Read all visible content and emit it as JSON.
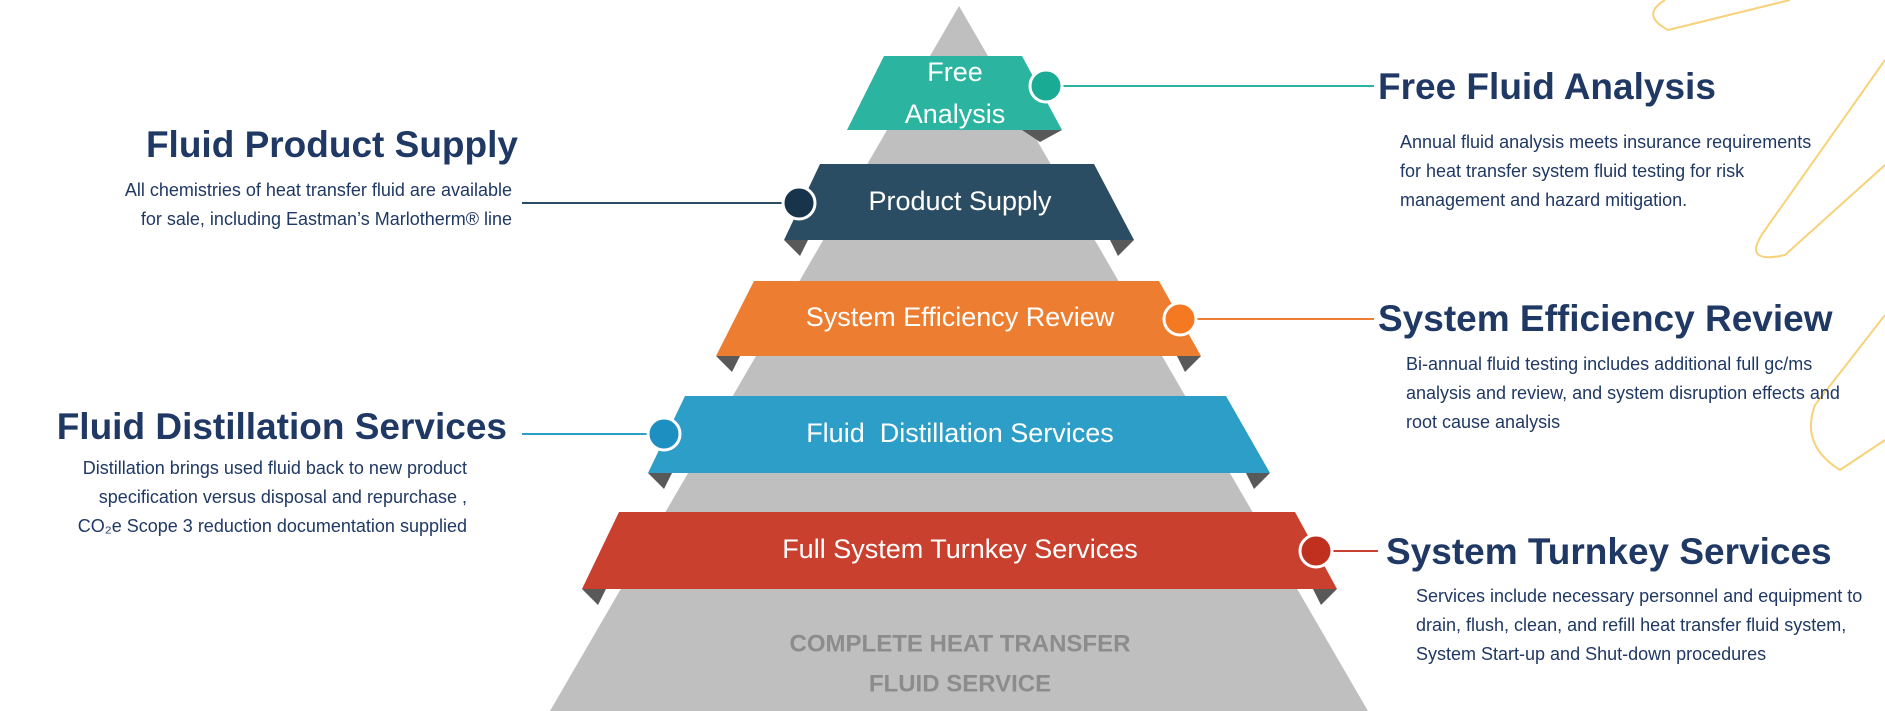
{
  "pyramid": {
    "base_label": [
      "COMPLETE HEAT TRANSFER",
      "FLUID SERVICE"
    ],
    "tiers": [
      {
        "label": [
          "Free",
          "Analysis"
        ],
        "title": "Free Fluid Analysis",
        "description": "Annual fluid analysis meets insurance requirements for heat transfer system fluid testing for risk management and hazard mitigation."
      },
      {
        "label": "Product Supply",
        "title": "Fluid Product Supply",
        "description": "All chemistries of heat transfer fluid  are available for sale, including Eastman’s Marlotherm® line"
      },
      {
        "label": "System Efficiency Review",
        "title": "System Efficiency Review",
        "description": "Bi-annual fluid testing includes additional full gc/ms analysis and review, and system disruption effects and root cause analysis"
      },
      {
        "label": "Fluid  Distillation Services",
        "title": "Fluid Distillation Services",
        "description": "Distillation brings used fluid back to new product specification versus disposal and repurchase , CO₂e Scope 3 reduction documentation supplied"
      },
      {
        "label": "Full System Turnkey Services",
        "title": "System Turnkey Services",
        "description": "Services include necessary personnel and equipment to drain, flush, clean, and refill heat transfer fluid system,  System Start-up and Shut-down procedures"
      }
    ]
  }
}
